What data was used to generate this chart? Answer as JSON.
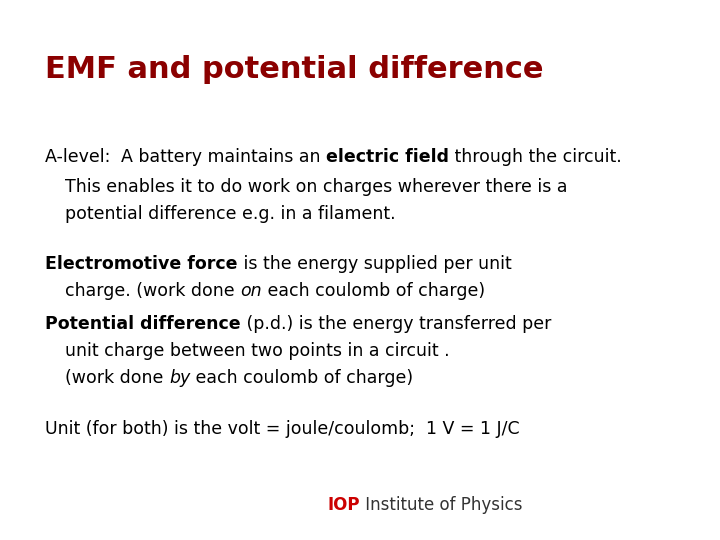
{
  "title": "EMF and potential difference",
  "title_color": "#8B0000",
  "title_fontsize": 22,
  "background_color": "#FFFFFF",
  "body_fontsize": 12.5,
  "body_color": "#000000",
  "iop_text_IOP": "IOP",
  "iop_text_rest": " Institute of Physics",
  "iop_color": "#CC0000",
  "iop_dark": "#333333",
  "iop_fontsize": 12
}
